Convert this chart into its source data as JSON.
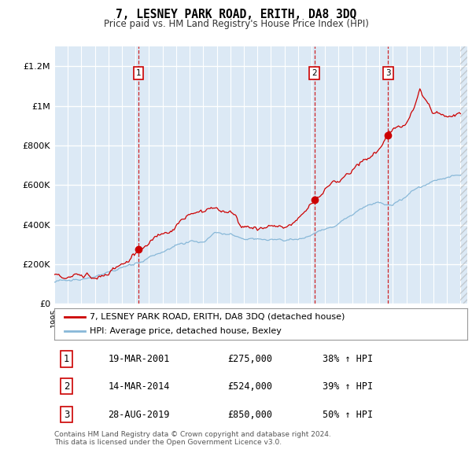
{
  "title": "7, LESNEY PARK ROAD, ERITH, DA8 3DQ",
  "subtitle": "Price paid vs. HM Land Registry's House Price Index (HPI)",
  "ylim": [
    0,
    1300000
  ],
  "yticks": [
    0,
    200000,
    400000,
    600000,
    800000,
    1000000,
    1200000
  ],
  "ytick_labels": [
    "£0",
    "£200K",
    "£400K",
    "£600K",
    "£800K",
    "£1M",
    "£1.2M"
  ],
  "background_color": "#dce9f5",
  "fig_bg_color": "#ffffff",
  "grid_color": "#ffffff",
  "line1_color": "#cc0000",
  "line2_color": "#88b8d8",
  "vline_color": "#cc0000",
  "marker_color": "#cc0000",
  "transaction_dates": [
    2001.21,
    2014.21,
    2019.66
  ],
  "transaction_prices": [
    275000,
    524000,
    850000
  ],
  "transaction_labels": [
    "1",
    "2",
    "3"
  ],
  "legend_line1": "7, LESNEY PARK ROAD, ERITH, DA8 3DQ (detached house)",
  "legend_line2": "HPI: Average price, detached house, Bexley",
  "table_rows": [
    [
      "1",
      "19-MAR-2001",
      "£275,000",
      "38% ↑ HPI"
    ],
    [
      "2",
      "14-MAR-2014",
      "£524,000",
      "39% ↑ HPI"
    ],
    [
      "3",
      "28-AUG-2019",
      "£850,000",
      "50% ↑ HPI"
    ]
  ],
  "footnote1": "Contains HM Land Registry data © Crown copyright and database right 2024.",
  "footnote2": "This data is licensed under the Open Government Licence v3.0.",
  "xstart": 1995.0,
  "xend": 2025.5
}
